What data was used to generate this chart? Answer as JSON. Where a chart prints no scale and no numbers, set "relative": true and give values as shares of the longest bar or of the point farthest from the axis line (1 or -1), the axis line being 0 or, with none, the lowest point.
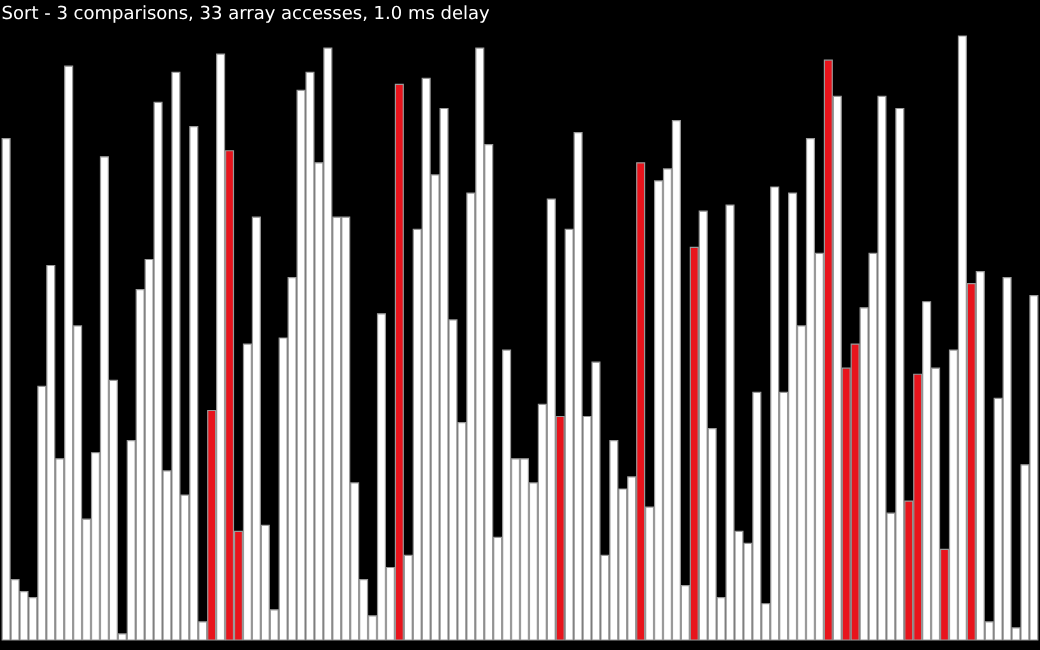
{
  "chart_data": {
    "type": "bar",
    "title": "Sort - 3 comparisons, 33 array accesses, 1.0 ms delay",
    "relative": true,
    "tick_labels": false,
    "categories": [
      null,
      null,
      null,
      null,
      null,
      null,
      null,
      null,
      null,
      null,
      null,
      null,
      null,
      null,
      null,
      null,
      null,
      null,
      null,
      null,
      null,
      null,
      null,
      null,
      null,
      null,
      null,
      null,
      null,
      null,
      null,
      null,
      null,
      null,
      null,
      null,
      null,
      null,
      null,
      null,
      null,
      null,
      null,
      null,
      null,
      null,
      null,
      null,
      null,
      null,
      null,
      null,
      null,
      null,
      null,
      null,
      null,
      null,
      null,
      null,
      null,
      null,
      null,
      null,
      null,
      null,
      null,
      null,
      null,
      null,
      null,
      null,
      null,
      null,
      null,
      null,
      null,
      null,
      null,
      null,
      null,
      null,
      null,
      null,
      null,
      null,
      null,
      null,
      null,
      null,
      null,
      null,
      null,
      null,
      null,
      null,
      null,
      null,
      null,
      null,
      null,
      null,
      null,
      null,
      null,
      null,
      null,
      null,
      null,
      null,
      null,
      null,
      null,
      null,
      null,
      null
    ],
    "values": [
      0.83,
      0.1,
      0.08,
      0.07,
      0.42,
      0.62,
      0.3,
      0.95,
      0.52,
      0.2,
      0.31,
      0.8,
      0.43,
      0.01,
      0.33,
      0.58,
      0.63,
      0.89,
      0.28,
      0.94,
      0.24,
      0.85,
      0.03,
      0.38,
      0.97,
      0.81,
      0.18,
      0.49,
      0.7,
      0.19,
      0.05,
      0.5,
      0.6,
      0.91,
      0.94,
      0.79,
      0.98,
      0.7,
      0.7,
      0.26,
      0.1,
      0.04,
      0.54,
      0.12,
      0.92,
      0.14,
      0.68,
      0.93,
      0.77,
      0.88,
      0.53,
      0.36,
      0.74,
      0.98,
      0.82,
      0.17,
      0.48,
      0.3,
      0.3,
      0.26,
      0.39,
      0.73,
      0.37,
      0.68,
      0.84,
      0.37,
      0.46,
      0.14,
      0.33,
      0.25,
      0.27,
      0.79,
      0.22,
      0.76,
      0.78,
      0.86,
      0.09,
      0.65,
      0.71,
      0.35,
      0.07,
      0.72,
      0.18,
      0.16,
      0.41,
      0.06,
      0.75,
      0.41,
      0.74,
      0.52,
      0.83,
      0.64,
      0.96,
      0.9,
      0.45,
      0.49,
      0.55,
      0.64,
      0.9,
      0.21,
      0.88,
      0.23,
      0.44,
      0.56,
      0.45,
      0.15,
      0.48,
      1,
      0.59,
      0.61,
      0.03,
      0.4,
      0.6,
      0.02,
      0.29,
      0.57
    ],
    "colors": [
      "#ffffff",
      "#ffffff",
      "#ffffff",
      "#ffffff",
      "#ffffff",
      "#ffffff",
      "#ffffff",
      "#ffffff",
      "#ffffff",
      "#ffffff",
      "#ffffff",
      "#ffffff",
      "#ffffff",
      "#ffffff",
      "#ffffff",
      "#ffffff",
      "#ffffff",
      "#ffffff",
      "#ffffff",
      "#ffffff",
      "#ffffff",
      "#ffffff",
      "#ffffff",
      "#e8141c",
      "#ffffff",
      "#e8141c",
      "#e8141c",
      "#ffffff",
      "#ffffff",
      "#ffffff",
      "#ffffff",
      "#ffffff",
      "#ffffff",
      "#ffffff",
      "#ffffff",
      "#ffffff",
      "#ffffff",
      "#ffffff",
      "#ffffff",
      "#ffffff",
      "#ffffff",
      "#ffffff",
      "#ffffff",
      "#ffffff",
      "#e8141c",
      "#ffffff",
      "#ffffff",
      "#ffffff",
      "#ffffff",
      "#ffffff",
      "#ffffff",
      "#ffffff",
      "#ffffff",
      "#ffffff",
      "#ffffff",
      "#ffffff",
      "#ffffff",
      "#ffffff",
      "#ffffff",
      "#ffffff",
      "#ffffff",
      "#ffffff",
      "#e8141c",
      "#ffffff",
      "#ffffff",
      "#ffffff",
      "#ffffff",
      "#ffffff",
      "#ffffff",
      "#ffffff",
      "#ffffff",
      "#e8141c",
      "#ffffff",
      "#ffffff",
      "#ffffff",
      "#ffffff",
      "#ffffff",
      "#e8141c",
      "#ffffff",
      "#ffffff",
      "#ffffff",
      "#ffffff",
      "#ffffff",
      "#ffffff",
      "#ffffff",
      "#ffffff",
      "#ffffff",
      "#ffffff",
      "#ffffff",
      "#ffffff",
      "#ffffff",
      "#ffffff",
      "#e8141c",
      "#ffffff",
      "#e8141c",
      "#e8141c",
      "#ffffff",
      "#ffffff",
      "#ffffff",
      "#ffffff",
      "#ffffff",
      "#e8141c",
      "#e8141c",
      "#ffffff",
      "#ffffff",
      "#e8141c",
      "#ffffff",
      "#ffffff",
      "#e8141c",
      "#ffffff",
      "#ffffff",
      "#ffffff",
      "#ffffff",
      "#ffffff",
      "#ffffff",
      "#ffffff"
    ]
  }
}
